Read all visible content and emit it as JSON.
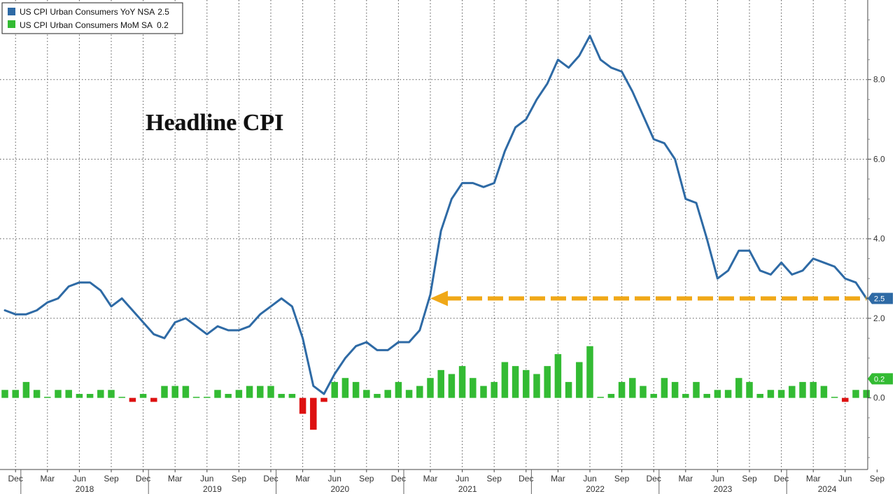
{
  "chart_data": {
    "type": "line+bar",
    "title": "Headline CPI",
    "start": "2017-11",
    "series": [
      {
        "name": "US CPI Urban Consumers YoY NSA",
        "legend_value": "2.5",
        "type": "line",
        "color": "#2e6aa5",
        "values": [
          2.2,
          2.1,
          2.1,
          2.2,
          2.4,
          2.5,
          2.8,
          2.9,
          2.9,
          2.7,
          2.3,
          2.5,
          2.2,
          1.9,
          1.6,
          1.5,
          1.9,
          2.0,
          1.8,
          1.6,
          1.8,
          1.7,
          1.7,
          1.8,
          2.1,
          2.3,
          2.5,
          2.3,
          1.5,
          0.3,
          0.1,
          0.6,
          1.0,
          1.3,
          1.4,
          1.2,
          1.2,
          1.4,
          1.4,
          1.7,
          2.6,
          4.2,
          5.0,
          5.4,
          5.4,
          5.3,
          5.4,
          6.2,
          6.8,
          7.0,
          7.5,
          7.9,
          8.5,
          8.3,
          8.6,
          9.1,
          8.5,
          8.3,
          8.2,
          7.7,
          7.1,
          6.5,
          6.4,
          6.0,
          5.0,
          4.9,
          4.0,
          3.0,
          3.2,
          3.7,
          3.7,
          3.2,
          3.1,
          3.4,
          3.1,
          3.2,
          3.5,
          3.4,
          3.3,
          3.0,
          2.9,
          2.5
        ],
        "last_label": "2.5"
      },
      {
        "name": "US CPI Urban Consumers MoM SA",
        "legend_value": "0.2",
        "type": "bar",
        "color_pos": "#33bb33",
        "color_neg": "#dd1111",
        "values": [
          0.2,
          0.2,
          0.4,
          0.2,
          0.0,
          0.2,
          0.2,
          0.1,
          0.1,
          0.2,
          0.2,
          0.0,
          -0.1,
          0.1,
          -0.1,
          0.3,
          0.3,
          0.3,
          0.0,
          0.0,
          0.2,
          0.1,
          0.2,
          0.3,
          0.3,
          0.3,
          0.1,
          0.1,
          -0.4,
          -0.8,
          -0.1,
          0.4,
          0.5,
          0.4,
          0.2,
          0.1,
          0.2,
          0.4,
          0.2,
          0.3,
          0.5,
          0.7,
          0.6,
          0.8,
          0.5,
          0.3,
          0.4,
          0.9,
          0.8,
          0.7,
          0.6,
          0.8,
          1.1,
          0.4,
          0.9,
          1.3,
          0.0,
          0.1,
          0.4,
          0.5,
          0.3,
          0.1,
          0.5,
          0.4,
          0.1,
          0.4,
          0.1,
          0.2,
          0.2,
          0.5,
          0.4,
          0.1,
          0.2,
          0.2,
          0.3,
          0.4,
          0.4,
          0.3,
          0.0,
          -0.1,
          0.2,
          0.2
        ],
        "last_label": "0.2"
      }
    ],
    "annotation": {
      "label": "",
      "value": 2.5,
      "from_month": 40,
      "to_month": 81,
      "color": "#f0a818"
    },
    "yaxis": {
      "side": "right",
      "ylim": [
        -1.8,
        10.0
      ],
      "tick_values": [
        0,
        2,
        4,
        6,
        8
      ],
      "tick_labels": [
        "0.0",
        "2.0",
        "4.0",
        "6.0",
        "8.0"
      ]
    },
    "xaxis": {
      "month_ticks": [
        {
          "m": 1,
          "label": "Dec"
        },
        {
          "m": 4,
          "label": "Mar"
        },
        {
          "m": 7,
          "label": "Jun"
        },
        {
          "m": 10,
          "label": "Sep"
        },
        {
          "m": 13,
          "label": "Dec"
        },
        {
          "m": 16,
          "label": "Mar"
        },
        {
          "m": 19,
          "label": "Jun"
        },
        {
          "m": 22,
          "label": "Sep"
        },
        {
          "m": 25,
          "label": "Dec"
        },
        {
          "m": 28,
          "label": "Mar"
        },
        {
          "m": 31,
          "label": "Jun"
        },
        {
          "m": 34,
          "label": "Sep"
        },
        {
          "m": 37,
          "label": "Dec"
        },
        {
          "m": 40,
          "label": "Mar"
        },
        {
          "m": 43,
          "label": "Jun"
        },
        {
          "m": 46,
          "label": "Sep"
        },
        {
          "m": 49,
          "label": "Dec"
        },
        {
          "m": 52,
          "label": "Mar"
        },
        {
          "m": 55,
          "label": "Jun"
        },
        {
          "m": 58,
          "label": "Sep"
        },
        {
          "m": 61,
          "label": "Dec"
        },
        {
          "m": 64,
          "label": "Mar"
        },
        {
          "m": 67,
          "label": "Jun"
        },
        {
          "m": 70,
          "label": "Sep"
        },
        {
          "m": 73,
          "label": "Dec"
        },
        {
          "m": 76,
          "label": "Mar"
        },
        {
          "m": 79,
          "label": "Jun"
        },
        {
          "m": 82,
          "label": "Sep"
        }
      ],
      "years": [
        {
          "label": "2018",
          "from": 1.5,
          "to": 13.5
        },
        {
          "label": "2019",
          "from": 13.5,
          "to": 25.5
        },
        {
          "label": "2020",
          "from": 25.5,
          "to": 37.5
        },
        {
          "label": "2021",
          "from": 37.5,
          "to": 49.5
        },
        {
          "label": "2022",
          "from": 49.5,
          "to": 61.5
        },
        {
          "label": "2023",
          "from": 61.5,
          "to": 73.5
        },
        {
          "label": "2024",
          "from": 73.5,
          "to": 83.0
        }
      ]
    },
    "grid": true,
    "legend_position": "top-left"
  },
  "colors": {
    "line": "#2e6aa5",
    "bar_pos": "#33bb33",
    "bar_neg": "#dd1111",
    "arrow": "#f0a818",
    "grid": "#555555"
  }
}
